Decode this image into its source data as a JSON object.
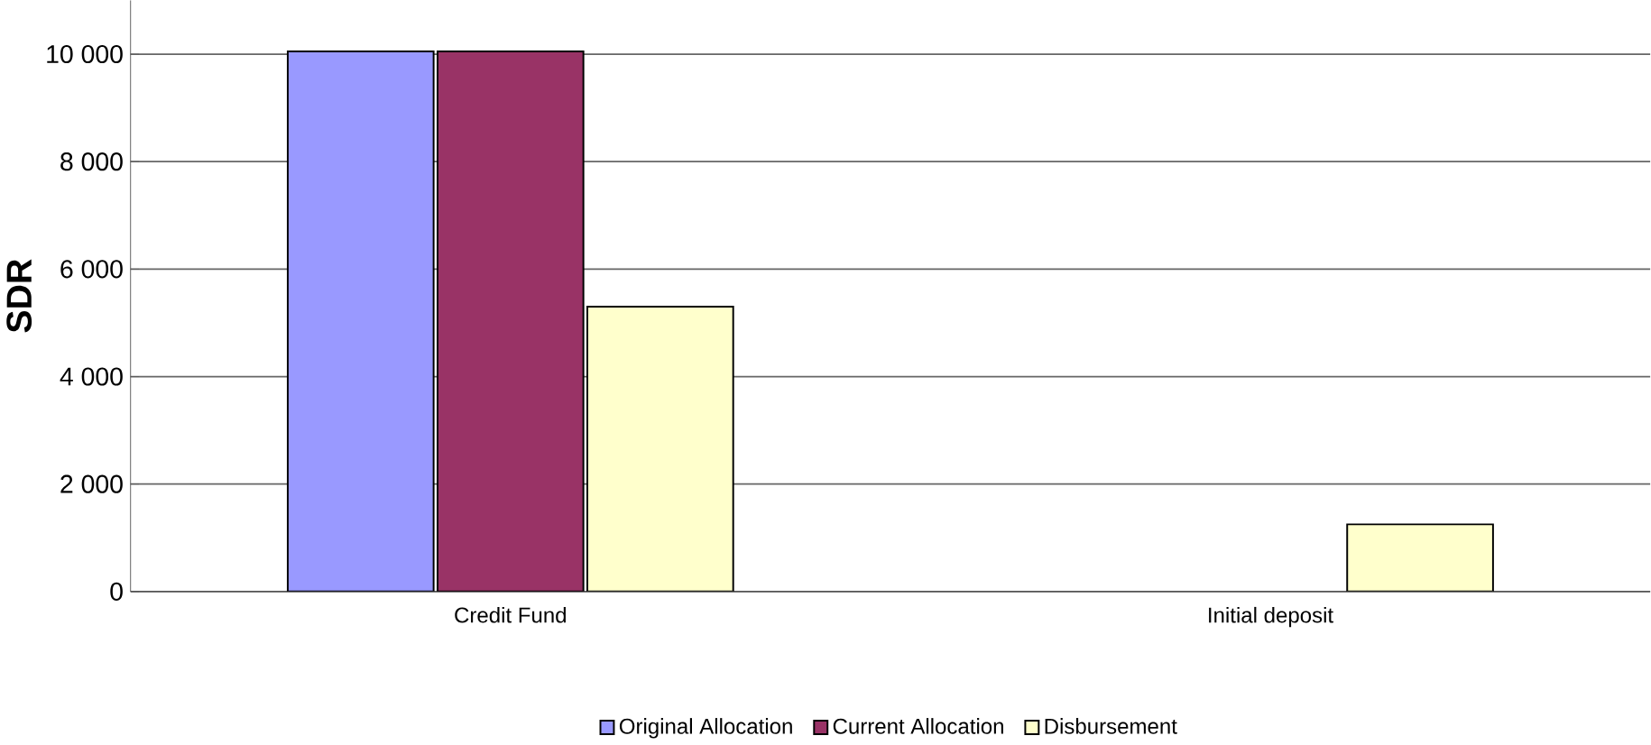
{
  "chart_data": {
    "type": "bar",
    "ylabel": "SDR",
    "categories": [
      "Credit Fund",
      "Initial deposit"
    ],
    "series": [
      {
        "name": "Original Allocation",
        "color": "#9999ff",
        "values": [
          10050,
          null
        ]
      },
      {
        "name": "Current Allocation",
        "color": "#993366",
        "values": [
          10050,
          null
        ]
      },
      {
        "name": "Disbursement",
        "color": "#ffffcc",
        "values": [
          5300,
          1250
        ]
      }
    ],
    "ylim": [
      0,
      11000
    ],
    "yticks": [
      0,
      {
        "value": 2000,
        "label": "2 000"
      },
      {
        "value": 4000,
        "label": "4 000"
      },
      {
        "value": 6000,
        "label": "6 000"
      },
      {
        "value": 8000,
        "label": "8 000"
      },
      {
        "value": 10000,
        "label": "10 000"
      }
    ],
    "grid": "y",
    "legend": "bottom"
  }
}
